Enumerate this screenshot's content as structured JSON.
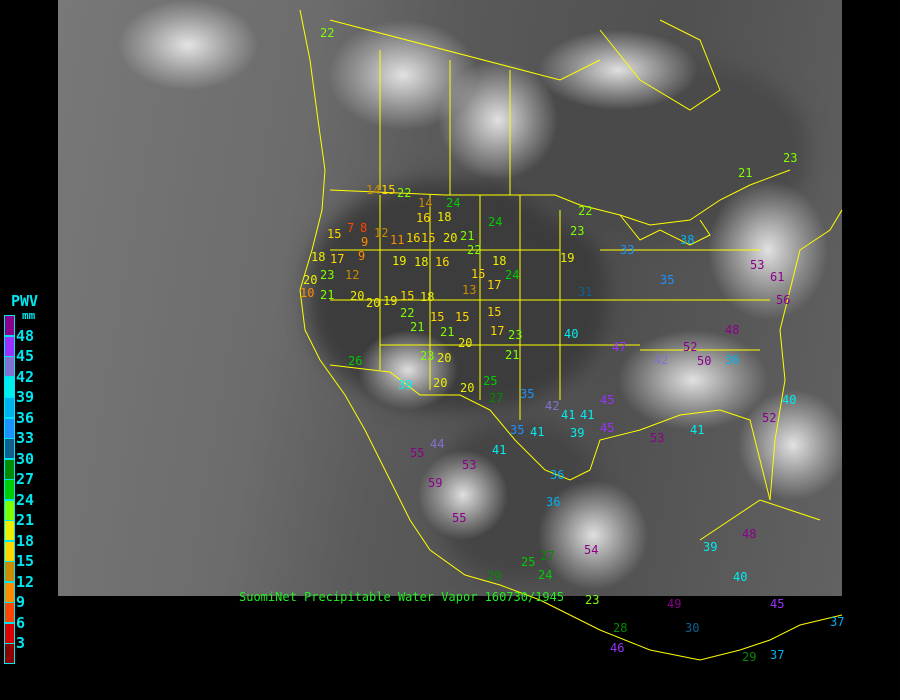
{
  "caption": "SuomiNet Precipitable Water Vapor 160730/1945",
  "legend": {
    "title": "PWV",
    "unit": "mm",
    "ticks": [
      "48",
      "45",
      "42",
      "39",
      "36",
      "33",
      "30",
      "27",
      "24",
      "21",
      "18",
      "15",
      "12",
      "9",
      "6",
      "3"
    ],
    "band_colors": [
      "#8b008b",
      "#9b30ff",
      "#8470cf",
      "#00eeee",
      "#00b2ee",
      "#1e90ff",
      "#10608f",
      "#008b00",
      "#00cd00",
      "#7fff00",
      "#eeee00",
      "#ffd700",
      "#cd8c00",
      "#ff8c00",
      "#ff4500",
      "#dd0000",
      "#8b0000"
    ]
  },
  "colors": {
    "border": "#ffff00",
    "text": "#00e5ee",
    "caption": "#22ee22"
  },
  "stations": [
    "22",
    "14",
    "15",
    "22",
    "24",
    "14",
    "16",
    "18",
    "24",
    "22",
    "23",
    "15",
    "7",
    "8",
    "12",
    "9",
    "11",
    "16",
    "15",
    "20",
    "21",
    "9",
    "19",
    "18",
    "16",
    "22",
    "18",
    "19",
    "18",
    "17",
    "23",
    "12",
    "20",
    "15",
    "24",
    "17",
    "10",
    "21",
    "20",
    "20",
    "19",
    "15",
    "18",
    "13",
    "15",
    "17",
    "23",
    "31",
    "40",
    "22",
    "21",
    "15",
    "21",
    "15",
    "20",
    "21",
    "23",
    "20",
    "26",
    "39",
    "20",
    "20",
    "25",
    "27",
    "35",
    "42",
    "41",
    "41",
    "44",
    "55",
    "35",
    "41",
    "39",
    "45",
    "53",
    "41",
    "36",
    "36",
    "59",
    "55",
    "29",
    "23",
    "25",
    "27",
    "24",
    "54",
    "49",
    "28",
    "30",
    "46",
    "39",
    "48",
    "40",
    "45",
    "37",
    "29",
    "37",
    "61",
    "56",
    "53",
    "40",
    "52",
    "48",
    "52",
    "50",
    "36",
    "42",
    "47",
    "21",
    "23",
    "53",
    "41",
    "33",
    "35",
    "38",
    "45"
  ]
}
